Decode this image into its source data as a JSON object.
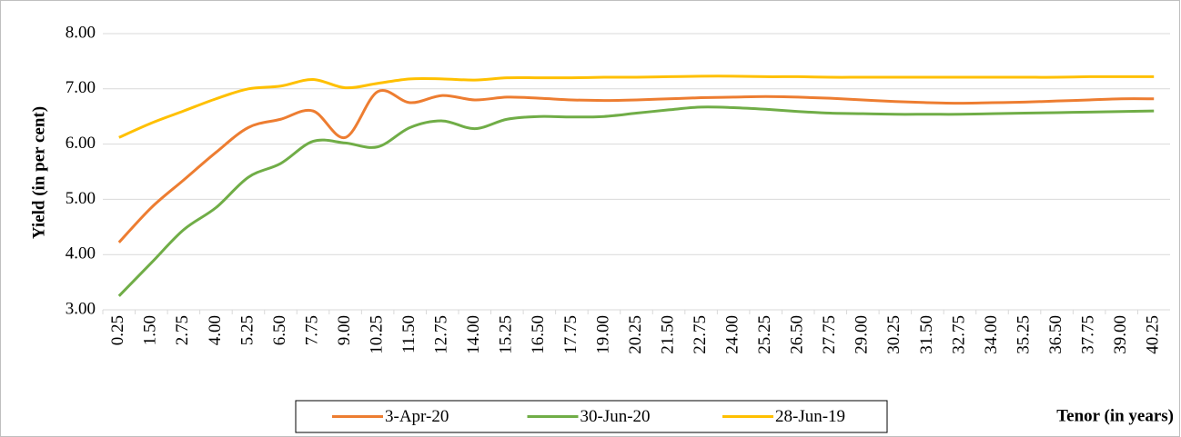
{
  "chart_data": {
    "type": "line",
    "y_label": "Yield (in per cent)",
    "x_label": "Tenor (in years)",
    "categories": [
      "0.25",
      "1.50",
      "2.75",
      "4.00",
      "5.25",
      "6.50",
      "7.75",
      "9.00",
      "10.25",
      "11.50",
      "12.75",
      "14.00",
      "15.25",
      "16.50",
      "17.75",
      "19.00",
      "20.25",
      "21.50",
      "22.75",
      "24.00",
      "25.25",
      "26.50",
      "27.75",
      "29.00",
      "30.25",
      "31.50",
      "32.75",
      "34.00",
      "35.25",
      "36.50",
      "37.75",
      "39.00",
      "40.25"
    ],
    "series": [
      {
        "name": "3-Apr-20",
        "color": "#ed7d31",
        "values": [
          4.22,
          4.85,
          5.35,
          5.85,
          6.3,
          6.45,
          6.6,
          6.12,
          6.95,
          6.75,
          6.88,
          6.8,
          6.85,
          6.83,
          6.8,
          6.79,
          6.8,
          6.82,
          6.84,
          6.85,
          6.86,
          6.85,
          6.83,
          6.8,
          6.77,
          6.75,
          6.74,
          6.75,
          6.76,
          6.78,
          6.8,
          6.82,
          6.82
        ]
      },
      {
        "name": "30-Jun-20",
        "color": "#70ad47",
        "values": [
          3.25,
          3.85,
          4.45,
          4.85,
          5.4,
          5.65,
          6.05,
          6.02,
          5.95,
          6.3,
          6.42,
          6.28,
          6.45,
          6.5,
          6.49,
          6.5,
          6.56,
          6.62,
          6.67,
          6.66,
          6.63,
          6.59,
          6.56,
          6.55,
          6.54,
          6.54,
          6.54,
          6.55,
          6.56,
          6.57,
          6.58,
          6.59,
          6.6
        ]
      },
      {
        "name": "28-Jun-19",
        "color": "#ffc000",
        "values": [
          6.12,
          6.38,
          6.6,
          6.82,
          7.0,
          7.05,
          7.17,
          7.02,
          7.1,
          7.18,
          7.18,
          7.16,
          7.2,
          7.2,
          7.2,
          7.21,
          7.21,
          7.22,
          7.23,
          7.23,
          7.22,
          7.22,
          7.21,
          7.21,
          7.21,
          7.21,
          7.21,
          7.21,
          7.21,
          7.21,
          7.22,
          7.22,
          7.22
        ]
      }
    ],
    "ylim": [
      3,
      8
    ],
    "yticks": [
      {
        "value": 3,
        "label": "3.00"
      },
      {
        "value": 4,
        "label": "4.00"
      },
      {
        "value": 5,
        "label": "5.00"
      },
      {
        "value": 6,
        "label": "6.00"
      },
      {
        "value": 7,
        "label": "7.00"
      },
      {
        "value": 8,
        "label": "8.00"
      }
    ],
    "grid": true,
    "legend": "bottom"
  }
}
